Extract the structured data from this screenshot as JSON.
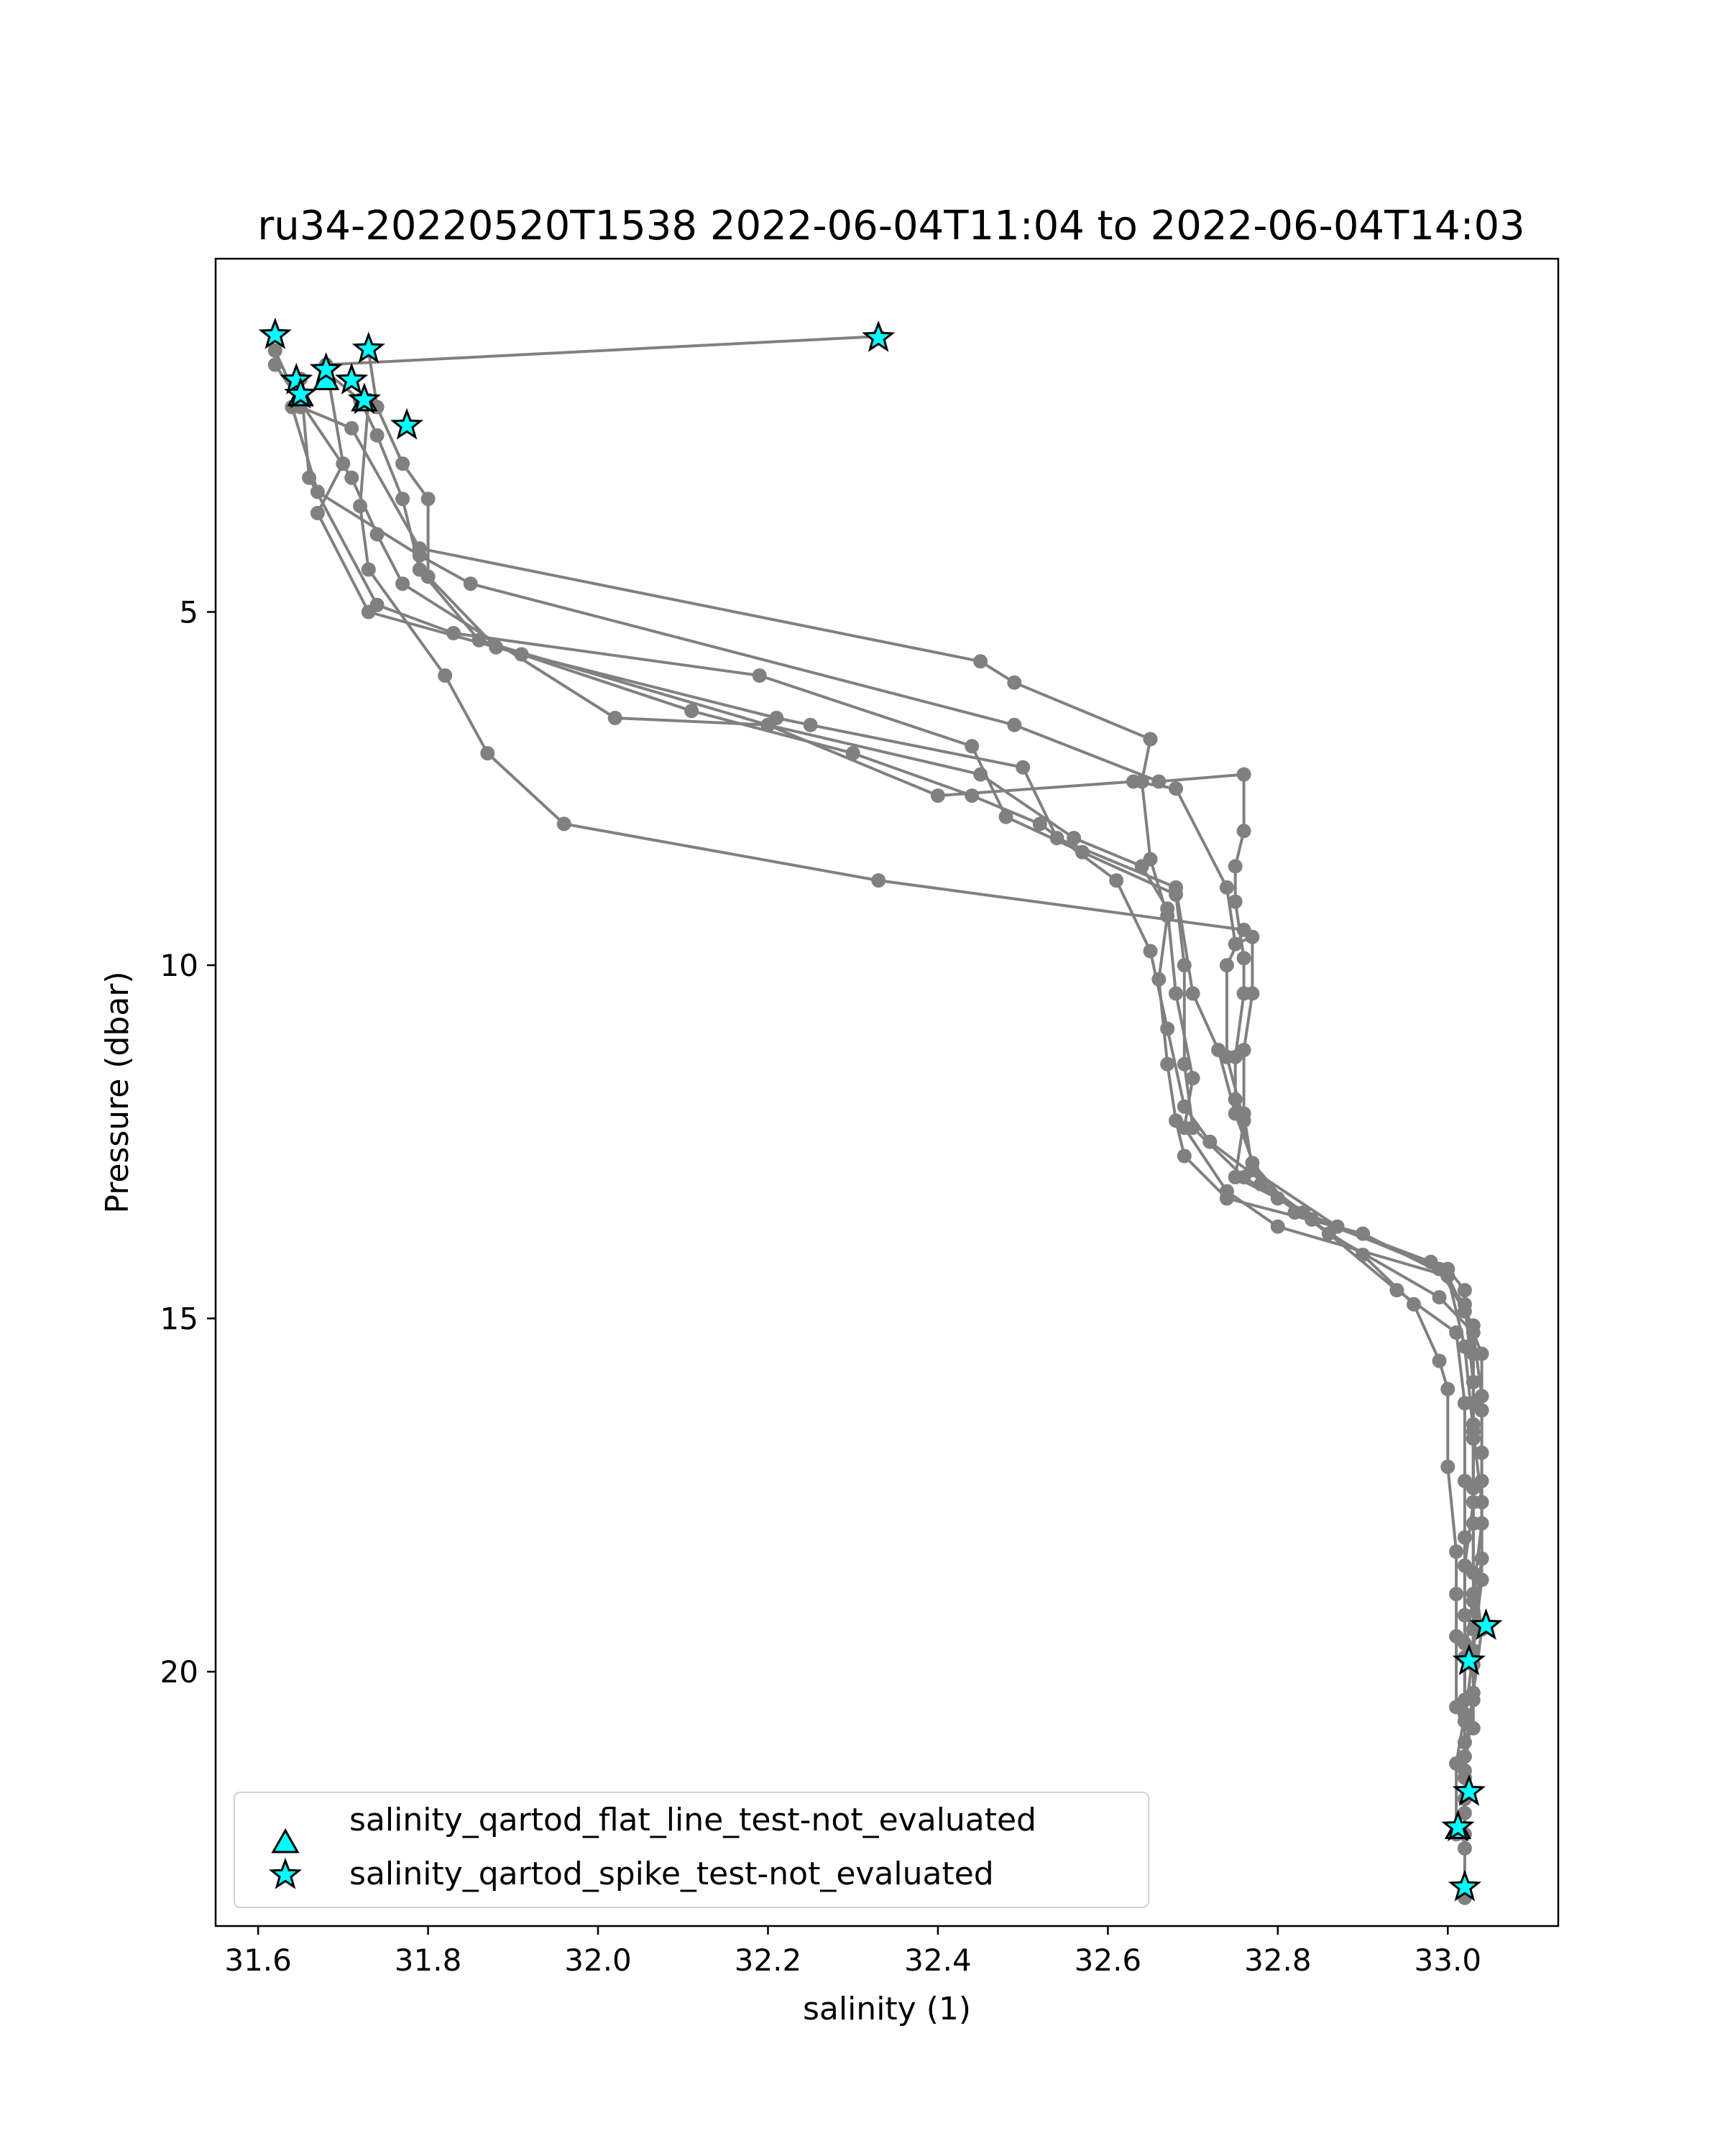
{
  "chart_data": {
    "type": "line",
    "title": "ru34-20220520T1538 2022-06-04T11:04 to 2022-06-04T14:03",
    "xlabel": "salinity (1)",
    "ylabel": "Pressure (dbar)",
    "xlim": [
      31.55,
      33.13
    ],
    "ylim": [
      23.6,
      0.0
    ],
    "y_inverted": true,
    "grid": false,
    "xticks": [
      31.6,
      31.8,
      32.0,
      32.2,
      32.4,
      32.6,
      32.8,
      33.0
    ],
    "xtick_labels": [
      "31.6",
      "31.8",
      "32.0",
      "32.2",
      "32.4",
      "32.6",
      "32.8",
      "33.0"
    ],
    "yticks": [
      5,
      10,
      15,
      20
    ],
    "ytick_labels": [
      "5",
      "10",
      "15",
      "20"
    ],
    "line_color": "#808080",
    "marker_color": "#00ffff",
    "legend_position": "lower-left",
    "legend": [
      {
        "label": "salinity_qartod_flat_line_test-not_evaluated",
        "marker": "triangle"
      },
      {
        "label": "salinity_qartod_spike_test-not_evaluated",
        "marker": "star"
      }
    ],
    "series": [
      {
        "values": [
          [
            32.33,
            1.1
          ],
          [
            31.68,
            1.5
          ],
          [
            31.7,
            2.9
          ],
          [
            31.67,
            3.6
          ],
          [
            31.73,
            5.0
          ],
          [
            31.91,
            5.6
          ],
          [
            32.11,
            6.4
          ],
          [
            32.3,
            7.0
          ],
          [
            32.44,
            7.6
          ],
          [
            32.52,
            8.0
          ],
          [
            32.61,
            8.8
          ],
          [
            32.65,
            9.8
          ],
          [
            32.67,
            10.9
          ],
          [
            32.69,
            12.0
          ],
          [
            32.72,
            12.5
          ],
          [
            32.83,
            13.5
          ],
          [
            32.99,
            14.3
          ],
          [
            33.03,
            15.1
          ],
          [
            33.03,
            16.2
          ],
          [
            33.03,
            17.4
          ],
          [
            33.03,
            18.6
          ],
          [
            33.04,
            19.4
          ],
          [
            33.03,
            20.3
          ],
          [
            33.02,
            21.2
          ],
          [
            33.02,
            22.3
          ],
          [
            33.02,
            23.2
          ]
        ]
      },
      {
        "values": [
          [
            31.73,
            1.3
          ],
          [
            31.74,
            2.1
          ],
          [
            31.77,
            2.9
          ],
          [
            31.8,
            3.4
          ],
          [
            31.8,
            4.5
          ],
          [
            31.88,
            5.5
          ],
          [
            32.21,
            6.5
          ],
          [
            32.25,
            6.6
          ],
          [
            32.5,
            7.2
          ],
          [
            32.54,
            8.2
          ],
          [
            32.68,
            8.9
          ],
          [
            32.7,
            10.4
          ],
          [
            32.73,
            11.2
          ],
          [
            32.75,
            12.1
          ],
          [
            32.78,
            13.1
          ],
          [
            32.86,
            13.8
          ],
          [
            32.99,
            14.7
          ],
          [
            33.03,
            15.2
          ],
          [
            33.04,
            16.1
          ],
          [
            33.04,
            16.9
          ],
          [
            33.04,
            17.9
          ],
          [
            33.03,
            18.9
          ],
          [
            33.02,
            19.8
          ],
          [
            33.02,
            21.0
          ],
          [
            33.02,
            21.8
          ]
        ]
      },
      {
        "values": [
          [
            31.65,
            1.7
          ],
          [
            31.66,
            3.1
          ],
          [
            31.74,
            4.9
          ],
          [
            31.83,
            5.3
          ],
          [
            32.19,
            5.9
          ],
          [
            32.44,
            6.9
          ],
          [
            32.48,
            7.9
          ],
          [
            32.57,
            8.4
          ],
          [
            32.68,
            9.0
          ],
          [
            32.69,
            10.0
          ],
          [
            32.69,
            11.4
          ],
          [
            32.7,
            12.3
          ],
          [
            32.76,
            13.0
          ],
          [
            32.84,
            13.6
          ],
          [
            32.94,
            14.6
          ],
          [
            33.01,
            15.2
          ],
          [
            33.02,
            16.2
          ],
          [
            33.02,
            17.3
          ],
          [
            33.02,
            18.1
          ],
          [
            33.02,
            19.2
          ],
          [
            33.02,
            20.4
          ],
          [
            33.02,
            21.5
          ]
        ]
      },
      {
        "values": [
          [
            31.62,
            1.3
          ],
          [
            31.65,
            2.1
          ],
          [
            31.71,
            2.4
          ],
          [
            31.79,
            4.1
          ],
          [
            32.45,
            5.7
          ],
          [
            32.49,
            6.0
          ],
          [
            32.65,
            6.8
          ],
          [
            32.64,
            7.4
          ],
          [
            32.65,
            8.5
          ],
          [
            32.67,
            9.3
          ],
          [
            32.66,
            10.2
          ],
          [
            32.67,
            11.4
          ],
          [
            32.68,
            12.2
          ],
          [
            32.69,
            12.7
          ],
          [
            32.74,
            13.3
          ],
          [
            32.9,
            13.8
          ],
          [
            33.0,
            14.4
          ],
          [
            33.02,
            15.4
          ],
          [
            33.03,
            16.6
          ],
          [
            33.04,
            17.6
          ],
          [
            33.04,
            18.7
          ],
          [
            33.03,
            19.7
          ],
          [
            33.02,
            20.7
          ],
          [
            33.02,
            21.5
          ],
          [
            33.02,
            22.5
          ]
        ]
      },
      {
        "values": [
          [
            31.62,
            1.5
          ],
          [
            31.71,
            3.1
          ],
          [
            31.74,
            3.9
          ],
          [
            31.77,
            4.6
          ],
          [
            32.02,
            6.5
          ],
          [
            32.2,
            6.6
          ],
          [
            32.45,
            7.3
          ],
          [
            32.56,
            8.2
          ],
          [
            32.64,
            8.6
          ],
          [
            32.67,
            9.2
          ],
          [
            32.68,
            10.4
          ],
          [
            32.7,
            11.6
          ],
          [
            32.69,
            12.3
          ],
          [
            32.74,
            13.2
          ],
          [
            32.8,
            13.7
          ],
          [
            33.0,
            14.4
          ],
          [
            33.02,
            14.9
          ],
          [
            33.04,
            15.5
          ],
          [
            33.04,
            16.3
          ],
          [
            33.04,
            17.3
          ],
          [
            33.04,
            18.4
          ],
          [
            33.03,
            19.4
          ],
          [
            33.03,
            20.4
          ],
          [
            33.02,
            21.4
          ],
          [
            33.02,
            22.0
          ]
        ]
      },
      {
        "values": [
          [
            31.64,
            2.1
          ],
          [
            31.67,
            3.3
          ],
          [
            31.79,
            4.2
          ],
          [
            31.85,
            4.6
          ],
          [
            32.49,
            6.6
          ],
          [
            32.66,
            7.4
          ],
          [
            32.76,
            7.3
          ],
          [
            32.76,
            8.1
          ],
          [
            32.75,
            8.6
          ],
          [
            32.75,
            9.1
          ],
          [
            32.76,
            9.9
          ],
          [
            32.76,
            10.4
          ],
          [
            32.75,
            11.3
          ],
          [
            32.75,
            11.9
          ],
          [
            32.77,
            12.8
          ],
          [
            32.82,
            13.5
          ],
          [
            33.0,
            14.3
          ],
          [
            33.02,
            14.6
          ],
          [
            33.03,
            15.5
          ],
          [
            33.03,
            16.5
          ],
          [
            33.03,
            17.6
          ],
          [
            33.02,
            18.5
          ],
          [
            33.02,
            19.6
          ],
          [
            33.02,
            20.6
          ],
          [
            33.01,
            21.3
          ],
          [
            33.01,
            22.3
          ]
        ]
      },
      {
        "values": [
          [
            31.68,
            1.6
          ],
          [
            31.72,
            2.0
          ],
          [
            31.74,
            2.5
          ],
          [
            31.77,
            3.4
          ],
          [
            31.79,
            4.4
          ],
          [
            31.86,
            5.4
          ],
          [
            32.2,
            6.6
          ],
          [
            32.4,
            7.6
          ],
          [
            32.63,
            7.4
          ],
          [
            32.68,
            7.5
          ],
          [
            32.74,
            8.9
          ],
          [
            32.75,
            9.7
          ],
          [
            32.77,
            9.6
          ],
          [
            32.77,
            10.4
          ],
          [
            32.76,
            11.2
          ],
          [
            32.76,
            12.1
          ],
          [
            32.77,
            12.9
          ],
          [
            32.87,
            13.7
          ],
          [
            32.98,
            14.2
          ],
          [
            33.02,
            14.8
          ],
          [
            33.03,
            15.9
          ],
          [
            33.03,
            16.7
          ],
          [
            33.03,
            17.9
          ],
          [
            33.03,
            19.0
          ],
          [
            33.03,
            19.9
          ],
          [
            33.03,
            20.8
          ]
        ]
      },
      {
        "values": [
          [
            31.73,
            2.0
          ],
          [
            31.72,
            3.5
          ],
          [
            31.73,
            4.4
          ],
          [
            31.82,
            5.9
          ],
          [
            31.87,
            7.0
          ],
          [
            31.96,
            8.0
          ],
          [
            32.33,
            8.8
          ],
          [
            32.76,
            9.5
          ],
          [
            32.74,
            10.0
          ],
          [
            32.74,
            11.3
          ],
          [
            32.76,
            12.2
          ],
          [
            32.75,
            13.0
          ],
          [
            32.8,
            13.3
          ],
          [
            32.9,
            14.1
          ],
          [
            32.96,
            14.8
          ],
          [
            32.99,
            15.6
          ],
          [
            33.0,
            16.0
          ],
          [
            33.0,
            17.1
          ],
          [
            33.01,
            18.3
          ],
          [
            33.01,
            18.9
          ],
          [
            33.01,
            19.5
          ],
          [
            33.01,
            20.5
          ]
        ]
      }
    ],
    "spike_markers": [
      [
        31.62,
        1.08
      ],
      [
        31.73,
        1.28
      ],
      [
        32.33,
        1.12
      ],
      [
        31.645,
        1.72
      ],
      [
        31.68,
        1.57
      ],
      [
        31.71,
        1.72
      ],
      [
        31.65,
        1.92
      ],
      [
        31.725,
        2.0
      ],
      [
        31.775,
        2.36
      ],
      [
        33.045,
        19.35
      ],
      [
        33.025,
        19.85
      ],
      [
        33.025,
        21.7
      ],
      [
        33.012,
        22.2
      ],
      [
        33.02,
        23.05
      ]
    ],
    "flatline_markers": [
      [
        31.65,
        1.95
      ],
      [
        31.68,
        1.72
      ],
      [
        31.725,
        2.02
      ],
      [
        33.012,
        22.23
      ]
    ]
  }
}
